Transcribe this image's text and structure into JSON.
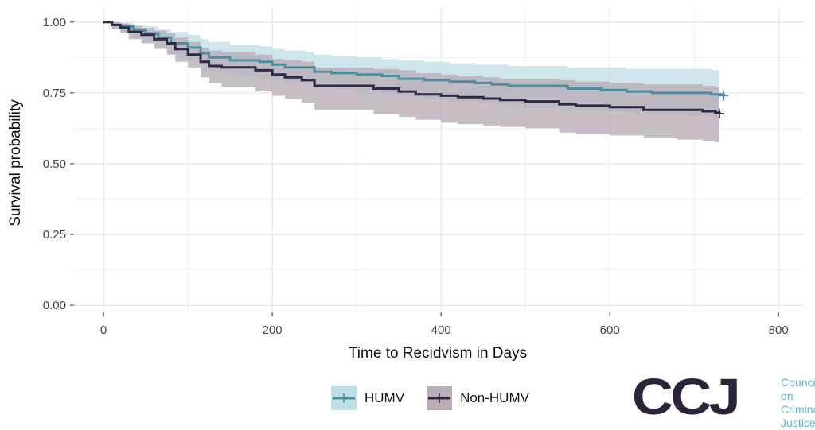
{
  "chart_data": {
    "type": "line",
    "subtype": "kaplan-meier survival curve with confidence bands",
    "xlabel": "Time to Recidvism in Days",
    "ylabel": "Survival probability",
    "xlim": [
      -35,
      830
    ],
    "ylim": [
      -0.025,
      1.05
    ],
    "x_ticks": [
      0,
      200,
      400,
      600,
      800
    ],
    "x_tick_labels": [
      "0",
      "200",
      "400",
      "600",
      "800"
    ],
    "y_ticks": [
      0,
      0.25,
      0.5,
      0.75,
      1.0
    ],
    "y_tick_labels": [
      "0.00",
      "0.25",
      "0.50",
      "0.75",
      "1.00"
    ],
    "grid": true,
    "legend_position": "bottom",
    "series": [
      {
        "name": "HUMV",
        "color": "#4a8fa0",
        "band_color": "#bfdfe6",
        "censor_end": [
          735,
          0.74
        ],
        "points": [
          [
            0,
            1.0
          ],
          [
            10,
            0.99
          ],
          [
            20,
            0.985
          ],
          [
            35,
            0.97
          ],
          [
            50,
            0.96
          ],
          [
            65,
            0.945
          ],
          [
            80,
            0.925
          ],
          [
            100,
            0.91
          ],
          [
            115,
            0.89
          ],
          [
            125,
            0.875
          ],
          [
            150,
            0.865
          ],
          [
            185,
            0.86
          ],
          [
            200,
            0.85
          ],
          [
            215,
            0.84
          ],
          [
            240,
            0.84
          ],
          [
            250,
            0.825
          ],
          [
            270,
            0.82
          ],
          [
            300,
            0.815
          ],
          [
            330,
            0.81
          ],
          [
            350,
            0.8
          ],
          [
            380,
            0.795
          ],
          [
            410,
            0.79
          ],
          [
            440,
            0.785
          ],
          [
            460,
            0.78
          ],
          [
            480,
            0.775
          ],
          [
            500,
            0.775
          ],
          [
            550,
            0.765
          ],
          [
            590,
            0.76
          ],
          [
            620,
            0.755
          ],
          [
            650,
            0.75
          ],
          [
            690,
            0.75
          ],
          [
            720,
            0.745
          ],
          [
            735,
            0.74
          ]
        ],
        "upper": [
          [
            0,
            1.0
          ],
          [
            10,
            1.0
          ],
          [
            20,
            0.997
          ],
          [
            35,
            0.99
          ],
          [
            50,
            0.985
          ],
          [
            65,
            0.975
          ],
          [
            80,
            0.965
          ],
          [
            100,
            0.955
          ],
          [
            115,
            0.94
          ],
          [
            125,
            0.93
          ],
          [
            150,
            0.92
          ],
          [
            185,
            0.915
          ],
          [
            200,
            0.905
          ],
          [
            215,
            0.9
          ],
          [
            240,
            0.895
          ],
          [
            250,
            0.885
          ],
          [
            270,
            0.88
          ],
          [
            300,
            0.875
          ],
          [
            330,
            0.87
          ],
          [
            350,
            0.865
          ],
          [
            380,
            0.86
          ],
          [
            410,
            0.855
          ],
          [
            440,
            0.85
          ],
          [
            460,
            0.85
          ],
          [
            480,
            0.845
          ],
          [
            500,
            0.845
          ],
          [
            550,
            0.84
          ],
          [
            590,
            0.84
          ],
          [
            620,
            0.835
          ],
          [
            650,
            0.835
          ],
          [
            690,
            0.835
          ],
          [
            720,
            0.83
          ],
          [
            730,
            0.83
          ]
        ],
        "lower": [
          [
            0,
            1.0
          ],
          [
            10,
            0.975
          ],
          [
            20,
            0.965
          ],
          [
            35,
            0.945
          ],
          [
            50,
            0.93
          ],
          [
            65,
            0.91
          ],
          [
            80,
            0.885
          ],
          [
            100,
            0.865
          ],
          [
            115,
            0.845
          ],
          [
            125,
            0.82
          ],
          [
            150,
            0.81
          ],
          [
            185,
            0.8
          ],
          [
            200,
            0.795
          ],
          [
            215,
            0.785
          ],
          [
            240,
            0.78
          ],
          [
            250,
            0.77
          ],
          [
            270,
            0.765
          ],
          [
            300,
            0.755
          ],
          [
            330,
            0.75
          ],
          [
            350,
            0.74
          ],
          [
            380,
            0.73
          ],
          [
            410,
            0.72
          ],
          [
            440,
            0.715
          ],
          [
            460,
            0.71
          ],
          [
            480,
            0.705
          ],
          [
            500,
            0.7
          ],
          [
            550,
            0.69
          ],
          [
            590,
            0.685
          ],
          [
            620,
            0.68
          ],
          [
            650,
            0.675
          ],
          [
            690,
            0.67
          ],
          [
            720,
            0.665
          ],
          [
            730,
            0.66
          ]
        ]
      },
      {
        "name": "Non-HUMV",
        "color": "#2e2a45",
        "band_color": "#b9adb8",
        "censor_end": [
          730,
          0.677
        ],
        "points": [
          [
            0,
            1.0
          ],
          [
            10,
            0.99
          ],
          [
            20,
            0.98
          ],
          [
            30,
            0.965
          ],
          [
            45,
            0.955
          ],
          [
            60,
            0.94
          ],
          [
            75,
            0.925
          ],
          [
            85,
            0.905
          ],
          [
            100,
            0.885
          ],
          [
            115,
            0.86
          ],
          [
            125,
            0.845
          ],
          [
            140,
            0.84
          ],
          [
            180,
            0.83
          ],
          [
            200,
            0.815
          ],
          [
            215,
            0.805
          ],
          [
            235,
            0.795
          ],
          [
            250,
            0.775
          ],
          [
            280,
            0.775
          ],
          [
            320,
            0.765
          ],
          [
            350,
            0.755
          ],
          [
            370,
            0.745
          ],
          [
            400,
            0.74
          ],
          [
            420,
            0.735
          ],
          [
            450,
            0.73
          ],
          [
            470,
            0.725
          ],
          [
            500,
            0.72
          ],
          [
            540,
            0.71
          ],
          [
            560,
            0.705
          ],
          [
            600,
            0.7
          ],
          [
            640,
            0.69
          ],
          [
            680,
            0.69
          ],
          [
            710,
            0.685
          ],
          [
            725,
            0.68
          ],
          [
            730,
            0.677
          ]
        ],
        "upper": [
          [
            0,
            1.0
          ],
          [
            10,
            1.0
          ],
          [
            20,
            0.995
          ],
          [
            30,
            0.985
          ],
          [
            45,
            0.98
          ],
          [
            60,
            0.97
          ],
          [
            75,
            0.96
          ],
          [
            85,
            0.945
          ],
          [
            100,
            0.93
          ],
          [
            115,
            0.91
          ],
          [
            125,
            0.9
          ],
          [
            140,
            0.895
          ],
          [
            180,
            0.885
          ],
          [
            200,
            0.87
          ],
          [
            215,
            0.865
          ],
          [
            235,
            0.86
          ],
          [
            250,
            0.84
          ],
          [
            280,
            0.84
          ],
          [
            320,
            0.835
          ],
          [
            350,
            0.83
          ],
          [
            370,
            0.82
          ],
          [
            400,
            0.815
          ],
          [
            420,
            0.81
          ],
          [
            450,
            0.805
          ],
          [
            470,
            0.8
          ],
          [
            500,
            0.8
          ],
          [
            540,
            0.795
          ],
          [
            560,
            0.79
          ],
          [
            600,
            0.785
          ],
          [
            640,
            0.78
          ],
          [
            680,
            0.78
          ],
          [
            710,
            0.775
          ],
          [
            725,
            0.77
          ],
          [
            730,
            0.77
          ]
        ],
        "lower": [
          [
            0,
            1.0
          ],
          [
            10,
            0.975
          ],
          [
            20,
            0.96
          ],
          [
            30,
            0.94
          ],
          [
            45,
            0.925
          ],
          [
            60,
            0.905
          ],
          [
            75,
            0.885
          ],
          [
            85,
            0.86
          ],
          [
            100,
            0.84
          ],
          [
            115,
            0.805
          ],
          [
            125,
            0.785
          ],
          [
            140,
            0.77
          ],
          [
            180,
            0.755
          ],
          [
            200,
            0.74
          ],
          [
            215,
            0.73
          ],
          [
            235,
            0.715
          ],
          [
            250,
            0.69
          ],
          [
            280,
            0.69
          ],
          [
            320,
            0.675
          ],
          [
            350,
            0.665
          ],
          [
            370,
            0.655
          ],
          [
            400,
            0.645
          ],
          [
            420,
            0.64
          ],
          [
            450,
            0.635
          ],
          [
            470,
            0.63
          ],
          [
            500,
            0.625
          ],
          [
            540,
            0.61
          ],
          [
            560,
            0.605
          ],
          [
            600,
            0.6
          ],
          [
            640,
            0.59
          ],
          [
            680,
            0.585
          ],
          [
            710,
            0.58
          ],
          [
            725,
            0.575
          ],
          [
            730,
            0.575
          ]
        ]
      }
    ]
  },
  "legend": {
    "items": [
      {
        "label": "HUMV",
        "color": "#4a8fa0",
        "fill": "#bfdfe6"
      },
      {
        "label": "Non-HUMV",
        "color": "#2e2a45",
        "fill": "#b9adb8"
      }
    ]
  },
  "logo": {
    "mark": "CCJ",
    "line1": "Council on",
    "line2": "Criminal",
    "line3": "Justice",
    "mark_color": "#2e2238",
    "text_color": "#5fb2c8"
  }
}
